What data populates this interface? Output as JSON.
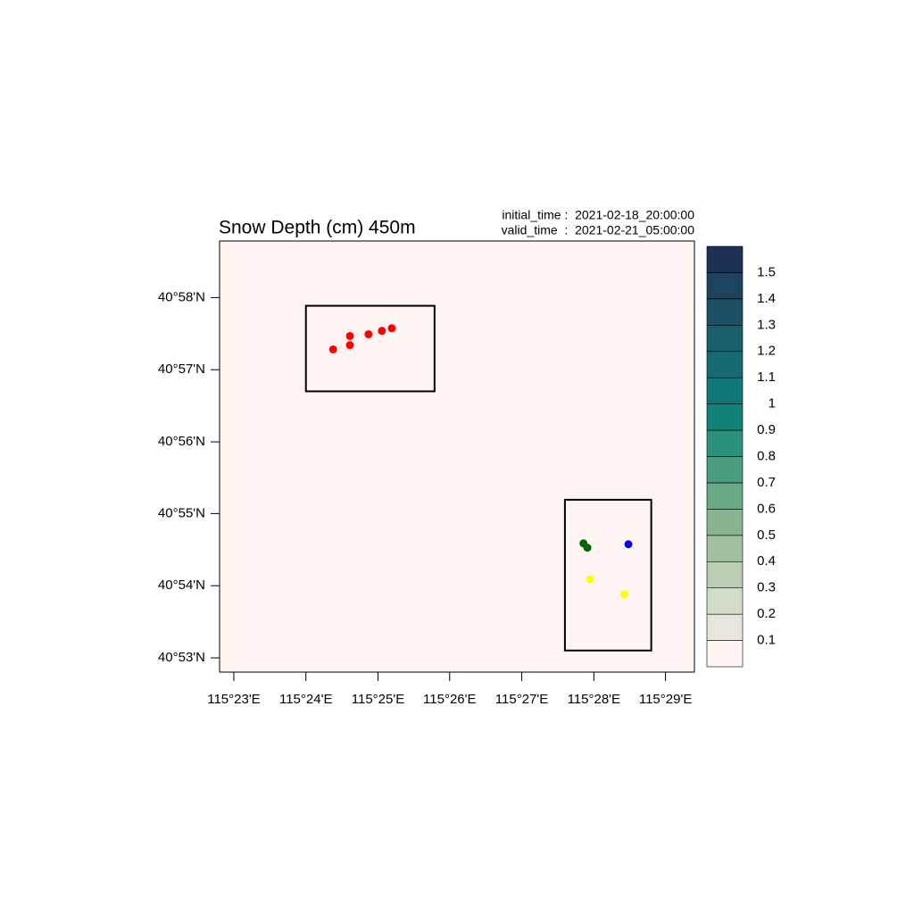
{
  "chart_data": {
    "type": "scatter",
    "title": "Snow Depth (cm) 450m",
    "annotations": [
      "initial_time :  2021-02-18_20:00:00",
      "valid_time  :  2021-02-21_05:00:00"
    ],
    "background": "#fff5f2",
    "xlim": [
      115.38,
      115.49
    ],
    "ylim": [
      40.88,
      40.9798
    ],
    "xticks": [
      {
        "value": 115.3833,
        "label": "115°23'E"
      },
      {
        "value": 115.4,
        "label": "115°24'E"
      },
      {
        "value": 115.4167,
        "label": "115°25'E"
      },
      {
        "value": 115.4333,
        "label": "115°26'E"
      },
      {
        "value": 115.45,
        "label": "115°27'E"
      },
      {
        "value": 115.4667,
        "label": "115°28'E"
      },
      {
        "value": 115.4833,
        "label": "115°29'E"
      }
    ],
    "yticks": [
      {
        "value": 40.8833,
        "label": "40°53'N"
      },
      {
        "value": 40.9,
        "label": "40°54'N"
      },
      {
        "value": 40.9167,
        "label": "40°55'N"
      },
      {
        "value": 40.9333,
        "label": "40°56'N"
      },
      {
        "value": 40.95,
        "label": "40°57'N"
      },
      {
        "value": 40.9667,
        "label": "40°58'N"
      }
    ],
    "series": [
      {
        "color": "#ff0000",
        "x": [
          115.4063,
          115.4102,
          115.4102,
          115.4145,
          115.4176,
          115.4199
        ],
        "values": [
          40.9547,
          40.9578,
          40.9557,
          40.9582,
          40.959,
          40.9596
        ]
      },
      {
        "color": "#006400",
        "x": [
          115.4643,
          115.4652
        ],
        "values": [
          40.9098,
          40.9088
        ]
      },
      {
        "color": "#0000ff",
        "x": [
          115.4747
        ],
        "values": [
          40.9096
        ]
      },
      {
        "color": "#ffff00",
        "x": [
          115.4658,
          115.4738
        ],
        "values": [
          40.9015,
          40.898
        ]
      }
    ],
    "regions": [
      {
        "xlim": [
          115.4,
          115.4298
        ],
        "ylim": [
          40.945,
          40.9648
        ]
      },
      {
        "xlim": [
          115.46,
          115.48
        ],
        "ylim": [
          40.885,
          40.9199
        ]
      }
    ],
    "colorbar": {
      "levels": [
        0.1,
        0.2,
        0.3,
        0.4,
        0.5,
        0.6,
        0.7,
        0.8,
        0.9,
        1,
        1.1,
        1.2,
        1.3,
        1.4,
        1.5
      ],
      "colors": [
        "#fff5f2",
        "#e8e4de",
        "#d3dbc9",
        "#bcceb4",
        "#a2c19f",
        "#88b48f",
        "#6aa985",
        "#4b9c7e",
        "#2c917b",
        "#118278",
        "#117678",
        "#176a72",
        "#1a5e6c",
        "#1c5064",
        "#1d435d",
        "#1b3053"
      ]
    }
  }
}
